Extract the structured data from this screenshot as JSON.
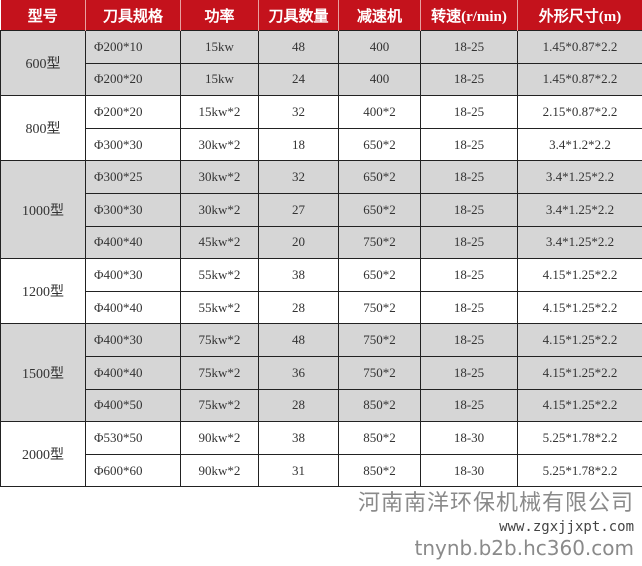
{
  "headers": [
    "型号",
    "刀具规格",
    "功率",
    "刀具数量",
    "减速机",
    "转速(r/min)",
    "外形尺寸(m)"
  ],
  "groups": [
    {
      "model": "600型",
      "rows": [
        [
          "Φ200*10",
          "15kw",
          "48",
          "400",
          "18-25",
          "1.45*0.87*2.2"
        ],
        [
          "Φ200*20",
          "15kw",
          "24",
          "400",
          "18-25",
          "1.45*0.87*2.2"
        ]
      ]
    },
    {
      "model": "800型",
      "rows": [
        [
          "Φ200*20",
          "15kw*2",
          "32",
          "400*2",
          "18-25",
          "2.15*0.87*2.2"
        ],
        [
          "Φ300*30",
          "30kw*2",
          "18",
          "650*2",
          "18-25",
          "3.4*1.2*2.2"
        ]
      ]
    },
    {
      "model": "1000型",
      "rows": [
        [
          "Φ300*25",
          "30kw*2",
          "32",
          "650*2",
          "18-25",
          "3.4*1.25*2.2"
        ],
        [
          "Φ300*30",
          "30kw*2",
          "27",
          "650*2",
          "18-25",
          "3.4*1.25*2.2"
        ],
        [
          "Φ400*40",
          "45kw*2",
          "20",
          "750*2",
          "18-25",
          "3.4*1.25*2.2"
        ]
      ]
    },
    {
      "model": "1200型",
      "rows": [
        [
          "Φ400*30",
          "55kw*2",
          "38",
          "650*2",
          "18-25",
          "4.15*1.25*2.2"
        ],
        [
          "Φ400*40",
          "55kw*2",
          "28",
          "750*2",
          "18-25",
          "4.15*1.25*2.2"
        ]
      ]
    },
    {
      "model": "1500型",
      "rows": [
        [
          "Φ400*30",
          "75kw*2",
          "48",
          "750*2",
          "18-25",
          "4.15*1.25*2.2"
        ],
        [
          "Φ400*40",
          "75kw*2",
          "36",
          "750*2",
          "18-25",
          "4.15*1.25*2.2"
        ],
        [
          "Φ400*50",
          "75kw*2",
          "28",
          "850*2",
          "18-25",
          "4.15*1.25*2.2"
        ]
      ]
    },
    {
      "model": "2000型",
      "rows": [
        [
          "Φ530*50",
          "90kw*2",
          "38",
          "850*2",
          "18-30",
          "5.25*1.78*2.2"
        ],
        [
          "Φ600*60",
          "90kw*2",
          "31",
          "850*2",
          "18-30",
          "5.25*1.78*2.2"
        ]
      ]
    }
  ],
  "watermarks": [
    "河南南洋环保机械有限公司",
    "www.zgxjjxpt.com",
    "tnynb.b2b.hc360.com"
  ],
  "colors": {
    "header_bg": "#c4121c",
    "shaded_row": "#d6d6d6"
  }
}
